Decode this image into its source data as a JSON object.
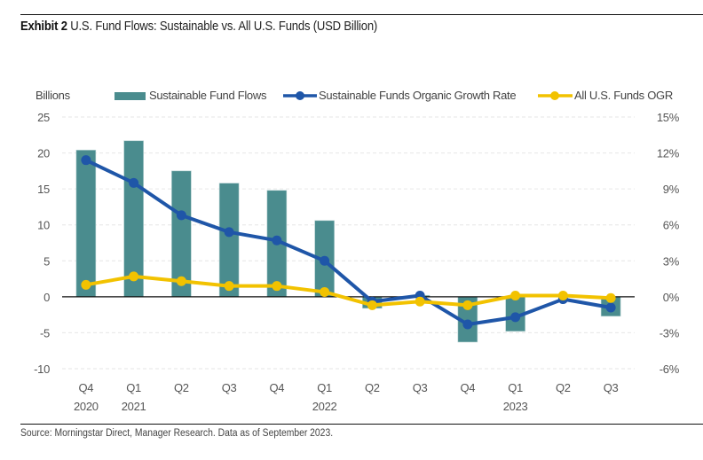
{
  "header": {
    "exhibit_label": "Exhibit 2",
    "title": "U.S. Fund Flows: Sustainable vs. All U.S. Funds (USD Billion)"
  },
  "footer": {
    "source": "Source: Morningstar Direct, Manager Research. Data as of September 2023."
  },
  "colors": {
    "bars": "#4a8c8e",
    "sustainable_ogr": "#1f56a8",
    "all_ogr": "#f2c200",
    "grid": "#e6e6e6",
    "axis_text": "#555555"
  },
  "chart_data": {
    "type": "bar+line",
    "title": "U.S. Fund Flows: Sustainable vs. All U.S. Funds (USD Billion)",
    "left_axis_label": "Billions",
    "categories": [
      {
        "q": "Q4",
        "year": "2020"
      },
      {
        "q": "Q1",
        "year": "2021"
      },
      {
        "q": "Q2",
        "year": ""
      },
      {
        "q": "Q3",
        "year": ""
      },
      {
        "q": "Q4",
        "year": ""
      },
      {
        "q": "Q1",
        "year": "2022"
      },
      {
        "q": "Q2",
        "year": ""
      },
      {
        "q": "Q3",
        "year": ""
      },
      {
        "q": "Q4",
        "year": ""
      },
      {
        "q": "Q1",
        "year": "2023"
      },
      {
        "q": "Q2",
        "year": ""
      },
      {
        "q": "Q3",
        "year": ""
      }
    ],
    "y_left": {
      "min": -10,
      "max": 25,
      "ticks": [
        25,
        20,
        15,
        10,
        5,
        0,
        -5,
        -10
      ]
    },
    "y_right": {
      "min": -6,
      "max": 15,
      "ticks": [
        "15%",
        "12%",
        "9%",
        "6%",
        "3%",
        "0%",
        "-3%",
        "-6%"
      ],
      "tick_values": [
        15,
        12,
        9,
        6,
        3,
        0,
        -3,
        -6
      ]
    },
    "grid": true,
    "legend_position": "top",
    "series": [
      {
        "name": "Sustainable Fund Flows",
        "type": "bar",
        "axis": "left",
        "values": [
          20.4,
          21.7,
          17.5,
          15.8,
          14.8,
          10.6,
          -1.6,
          0.2,
          -6.3,
          -4.8,
          0.3,
          -2.7
        ]
      },
      {
        "name": "Sustainable Funds Organic Growth Rate",
        "type": "line",
        "axis": "right",
        "values": [
          11.4,
          9.5,
          6.8,
          5.4,
          4.7,
          3.0,
          -0.4,
          0.1,
          -2.3,
          -1.7,
          -0.2,
          -0.9
        ]
      },
      {
        "name": "All U.S. Funds OGR",
        "type": "line",
        "axis": "right",
        "values": [
          1.0,
          1.7,
          1.3,
          0.9,
          0.9,
          0.4,
          -0.7,
          -0.4,
          -0.7,
          0.1,
          0.1,
          -0.1
        ]
      }
    ]
  }
}
